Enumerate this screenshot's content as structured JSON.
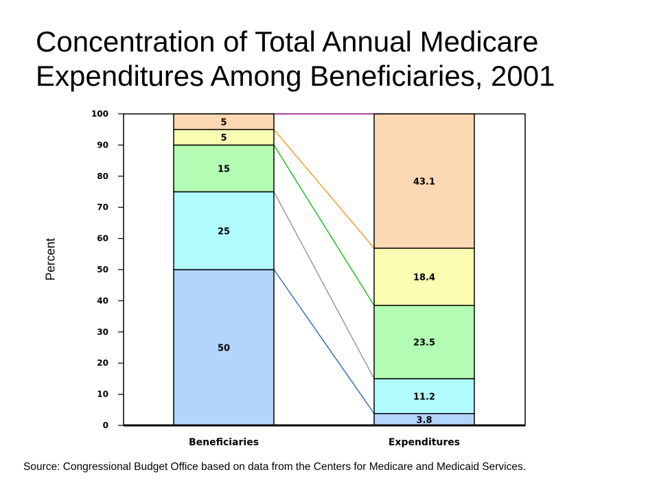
{
  "title": {
    "line1": "Concentration of Total Annual Medicare",
    "line2": "Expenditures Among Beneficiaries, 2001"
  },
  "source": "Source: Congressional Budget Office based on data from the Centers for Medicare and Medicaid Services.",
  "chart_data": {
    "type": "bar",
    "stacked": true,
    "title": "Concentration of Total Annual Medicare Expenditures Among Beneficiaries, 2001",
    "xlabel": "",
    "ylabel": "Percent",
    "ylim": [
      0,
      100
    ],
    "yticks": [
      "0",
      "10",
      "20",
      "30",
      "40",
      "50",
      "60",
      "70",
      "80",
      "90",
      "100"
    ],
    "categories": [
      "Beneficiaries",
      "Expenditures"
    ],
    "series": [
      {
        "values": [
          50,
          3.8
        ],
        "labels": [
          "50",
          "3.8"
        ],
        "color": "#b3d4fc",
        "line_color": "#2e6fbf"
      },
      {
        "values": [
          25,
          11.2
        ],
        "labels": [
          "25",
          "11.2"
        ],
        "color": "#b0fcfc",
        "line_color": "#9a9a9a"
      },
      {
        "values": [
          15,
          23.5
        ],
        "labels": [
          "15",
          "23.5"
        ],
        "color": "#b3fcb3",
        "line_color": "#22bb22"
      },
      {
        "values": [
          5,
          18.4
        ],
        "labels": [
          "5",
          "18.4"
        ],
        "color": "#fcfcb3",
        "line_color": "#f59b2a"
      },
      {
        "values": [
          5,
          43.1
        ],
        "labels": [
          "5",
          "43.1"
        ],
        "color": "#fcd8b3",
        "line_color": "#b030b0"
      }
    ],
    "grid": false,
    "legend": "none"
  }
}
